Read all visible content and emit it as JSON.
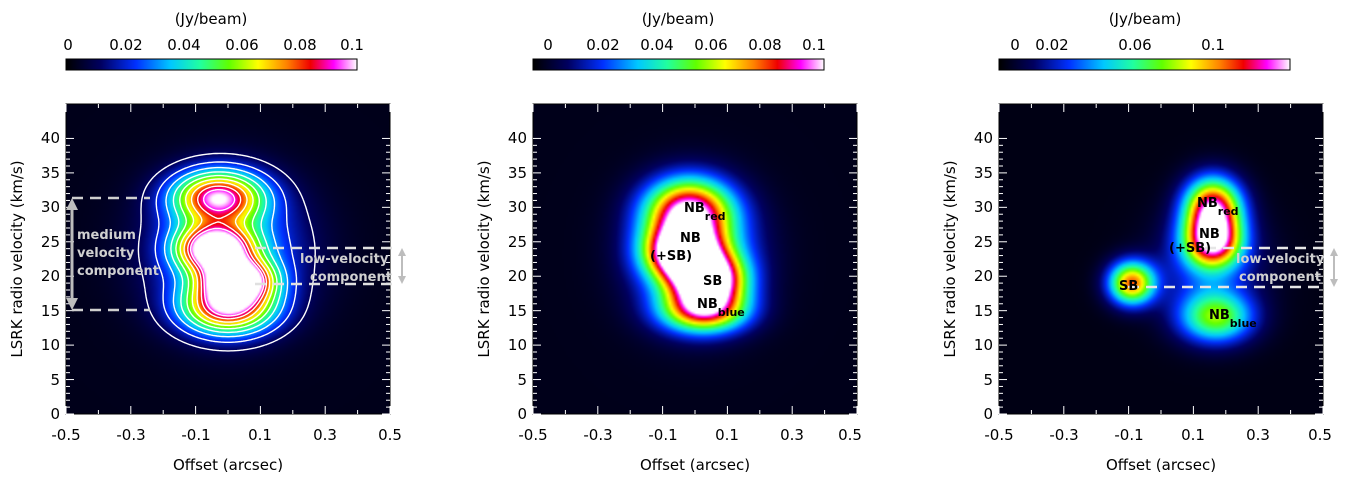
{
  "chart_data": [
    {
      "type": "heatmap",
      "panel": "left",
      "colorbar": {
        "label": "(Jy/beam)",
        "ticks": [
          "0",
          "0.02",
          "0.04",
          "0.06",
          "0.08",
          "0.1"
        ],
        "tick_values": [
          0,
          0.02,
          0.04,
          0.06,
          0.08,
          0.1
        ],
        "range": [
          0,
          0.106
        ]
      },
      "xlabel": "Offset (arcsec)",
      "ylabel": "LSRK radio velocity (km/s)",
      "xlim": [
        -0.5,
        0.5
      ],
      "ylim": [
        0,
        45
      ],
      "xticks": [
        "-0.5",
        "-0.3",
        "-0.1",
        "0.1",
        "0.3",
        "0.5"
      ],
      "yticks": [
        "0",
        "5",
        "10",
        "15",
        "20",
        "25",
        "30",
        "35",
        "40"
      ],
      "contours": true,
      "peak_components": [
        {
          "x": -0.03,
          "y": 31.5,
          "value": 0.085
        },
        {
          "x": -0.04,
          "y": 24.0,
          "value": 0.104
        },
        {
          "x": 0.03,
          "y": 19.5,
          "value": 0.104
        },
        {
          "x": 0.0,
          "y": 15.5,
          "value": 0.085
        }
      ],
      "annotations": [
        {
          "lines": [
            "medium",
            "velocity",
            "component"
          ],
          "color": "#d0d0d0"
        },
        {
          "lines": [
            "low-velocity",
            "component"
          ],
          "color": "#d0d0d0"
        }
      ],
      "bands": [
        {
          "name": "medium velocity component",
          "y": [
            15.5,
            31.5
          ]
        },
        {
          "name": "low-velocity component",
          "y": [
            19.0,
            24.0
          ]
        }
      ]
    },
    {
      "type": "heatmap",
      "panel": "middle",
      "colorbar": {
        "label": "(Jy/beam)",
        "ticks": [
          "0",
          "0.02",
          "0.04",
          "0.06",
          "0.08",
          "0.1"
        ],
        "tick_values": [
          0,
          0.02,
          0.04,
          0.06,
          0.08,
          0.1
        ],
        "range": [
          0,
          0.106
        ]
      },
      "xlabel": "Offset (arcsec)",
      "ylabel": "LSRK radio velocity (km/s)",
      "xlim": [
        -0.5,
        0.5
      ],
      "ylim": [
        0,
        45
      ],
      "xticks": [
        "-0.5",
        "-0.3",
        "-0.1",
        "0.1",
        "0.3",
        "0.5"
      ],
      "yticks": [
        "0",
        "5",
        "10",
        "15",
        "20",
        "25",
        "30",
        "35",
        "40"
      ],
      "contours": false,
      "peak_components": [
        {
          "x": -0.02,
          "y": 29.5,
          "value": 0.085
        },
        {
          "x": -0.04,
          "y": 23.5,
          "value": 0.098
        },
        {
          "x": 0.04,
          "y": 19.5,
          "value": 0.1
        },
        {
          "x": 0.03,
          "y": 15.0,
          "value": 0.072
        }
      ],
      "annotations": [
        {
          "text": "NB",
          "sub": "red",
          "color": "#000000"
        },
        {
          "text": "NB",
          "color": "#000000"
        },
        {
          "text": "(+SB)",
          "color": "#000000"
        },
        {
          "text": "SB",
          "color": "#000000"
        },
        {
          "text": "NB",
          "sub": "blue",
          "color": "#000000"
        }
      ]
    },
    {
      "type": "heatmap",
      "panel": "right",
      "colorbar": {
        "label": "(Jy/beam)",
        "ticks": [
          "0",
          "0.02",
          "0.06",
          "0.1"
        ],
        "tick_values": [
          0,
          0.02,
          0.06,
          0.1
        ],
        "range": [
          0,
          0.14
        ]
      },
      "xlabel": "Offset (arcsec)",
      "ylabel": "LSRK radio velocity (km/s)",
      "xlim": [
        -0.5,
        0.5
      ],
      "ylim": [
        0,
        45
      ],
      "xticks": [
        "-0.5",
        "-0.3",
        "-0.1",
        "0.1",
        "0.3",
        "0.5"
      ],
      "yticks": [
        "0",
        "5",
        "10",
        "15",
        "20",
        "25",
        "30",
        "35",
        "40"
      ],
      "contours": false,
      "peak_components": [
        {
          "x": 0.16,
          "y": 30.0,
          "value": 0.12
        },
        {
          "x": 0.16,
          "y": 25.0,
          "value": 0.11
        },
        {
          "x": -0.09,
          "y": 19.0,
          "value": 0.105
        },
        {
          "x": 0.17,
          "y": 14.0,
          "value": 0.072
        }
      ],
      "annotations": [
        {
          "text": "NB",
          "sub": "red",
          "color": "#000000"
        },
        {
          "text": "NB",
          "color": "#000000"
        },
        {
          "text": "(+SB)",
          "color": "#000000"
        },
        {
          "text": "SB",
          "color": "#000000"
        },
        {
          "text": "NB",
          "sub": "blue",
          "color": "#000000"
        },
        {
          "lines": [
            "low-velocity",
            "component"
          ],
          "color": "#d0d0d0"
        }
      ],
      "bands": [
        {
          "name": "low-velocity component",
          "y": [
            19.0,
            24.0
          ]
        }
      ]
    }
  ]
}
